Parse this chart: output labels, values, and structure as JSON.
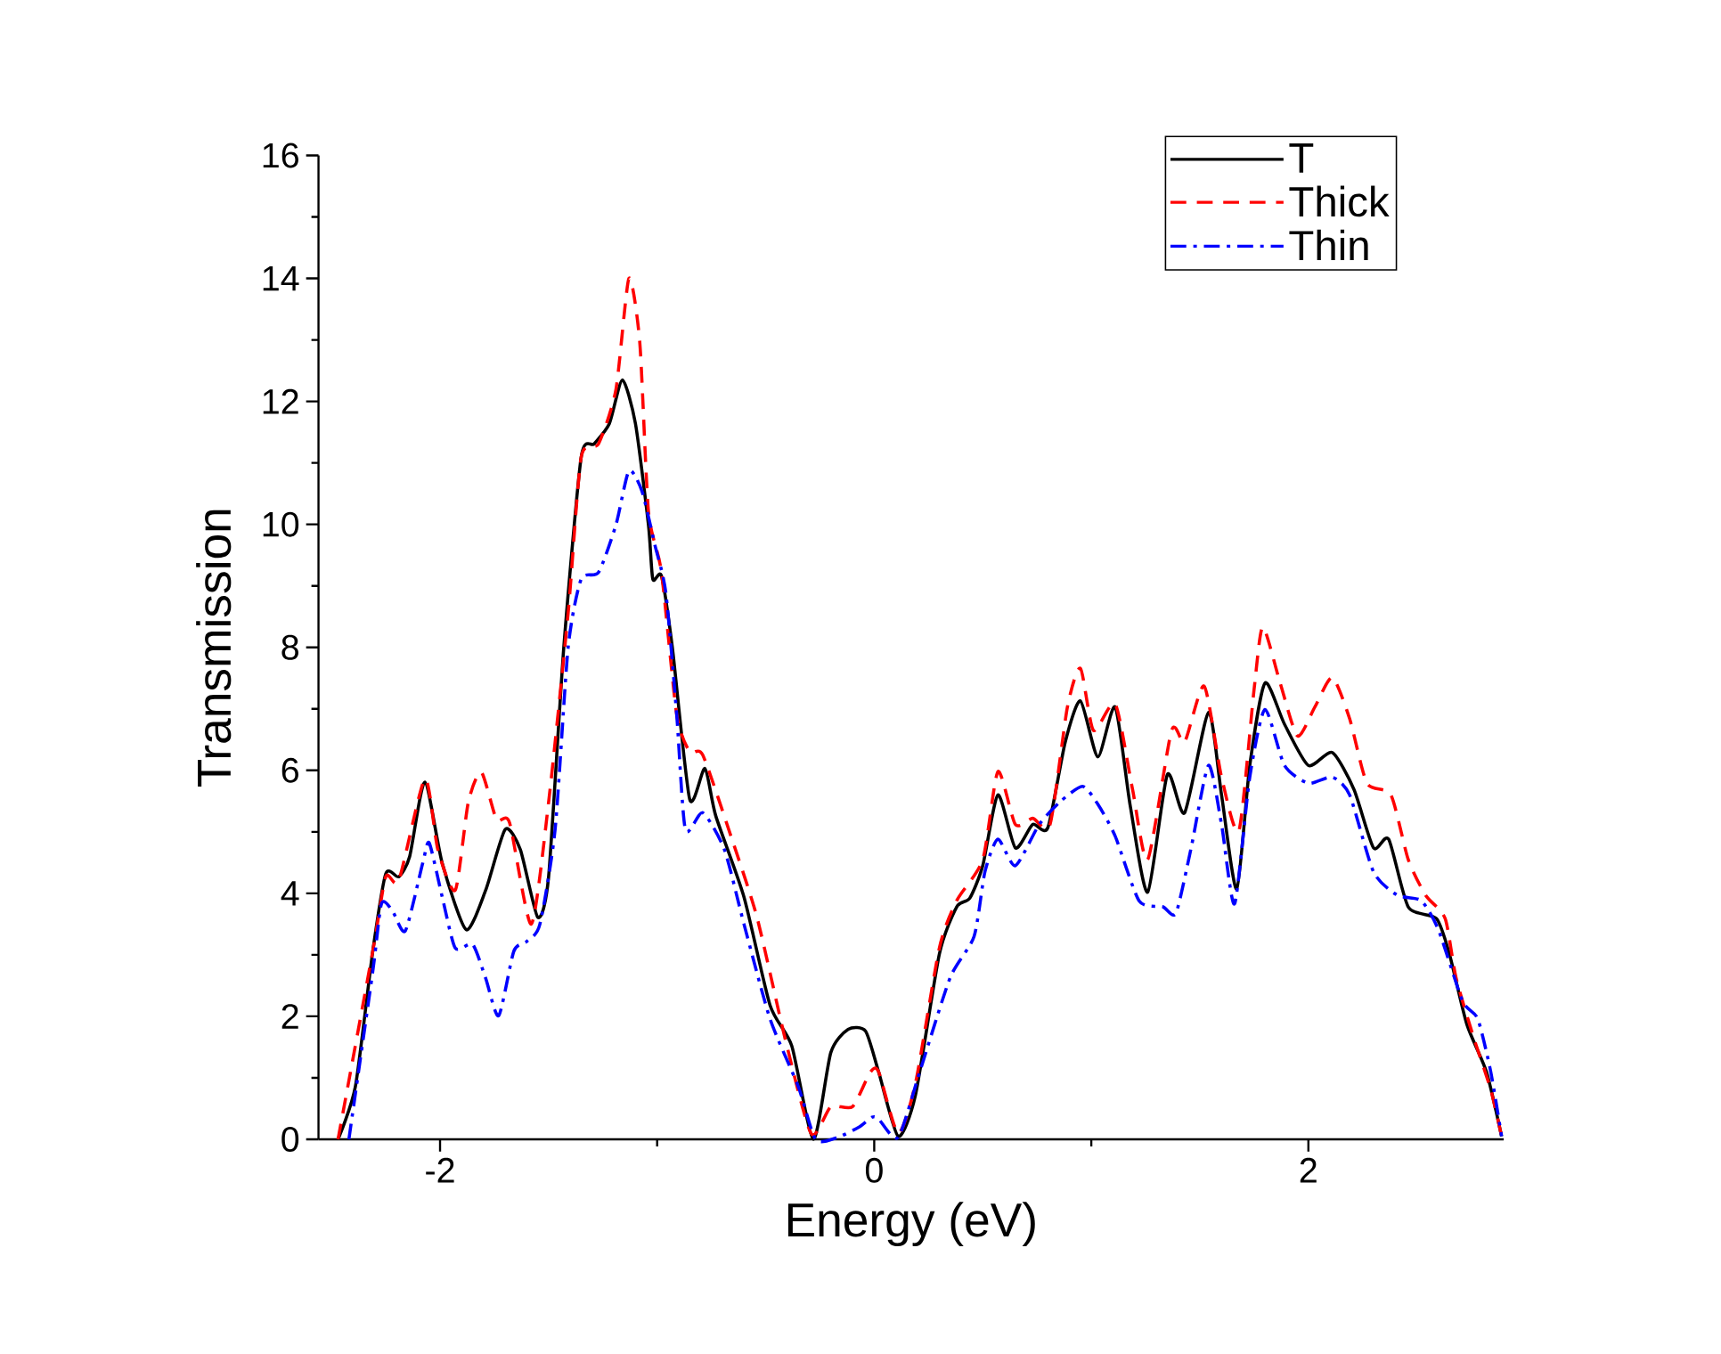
{
  "chart_data": {
    "type": "line",
    "xlabel": "Energy (eV)",
    "ylabel": "Transmission",
    "xlim": [
      -2.56,
      2.9
    ],
    "ylim": [
      0,
      16
    ],
    "xticks": [
      -2,
      0,
      2
    ],
    "yticks": [
      0,
      2,
      4,
      6,
      8,
      10,
      12,
      14,
      16
    ],
    "legend": "top right",
    "grid": false,
    "series": [
      {
        "name": "T",
        "color": "#000000",
        "line_style": "solid",
        "x": [
          -2.47,
          -2.39,
          -2.31,
          -2.25,
          -2.19,
          -2.14,
          -2.07,
          -1.99,
          -1.88,
          -1.79,
          -1.7,
          -1.63,
          -1.55,
          -1.5,
          -1.43,
          -1.35,
          -1.29,
          -1.22,
          -1.16,
          -1.1,
          -1.04,
          -1.02,
          -0.98,
          -0.93,
          -0.85,
          -0.78,
          -0.73,
          -0.6,
          -0.48,
          -0.38,
          -0.28,
          -0.2,
          -0.12,
          -0.04,
          0.02,
          0.11,
          0.19,
          0.3,
          0.38,
          0.44,
          0.5,
          0.57,
          0.65,
          0.73,
          0.8,
          0.88,
          0.95,
          1.03,
          1.11,
          1.18,
          1.26,
          1.35,
          1.43,
          1.54,
          1.6,
          1.67,
          1.73,
          1.8,
          1.89,
          2.0,
          2.11,
          2.21,
          2.3,
          2.37,
          2.46,
          2.59,
          2.65,
          2.73,
          2.82,
          2.89
        ],
        "values": [
          0,
          0.86,
          3.06,
          4.32,
          4.27,
          4.6,
          5.81,
          4.49,
          3.41,
          4.05,
          5.04,
          4.71,
          3.61,
          4.27,
          8.0,
          11.09,
          11.31,
          11.64,
          12.35,
          11.64,
          9.99,
          9.11,
          9.16,
          8.0,
          5.53,
          6.03,
          5.26,
          3.94,
          2.18,
          1.52,
          0,
          1.41,
          1.79,
          1.76,
          1.1,
          0.05,
          0.72,
          3.01,
          3.78,
          3.92,
          4.45,
          5.6,
          4.74,
          5.12,
          5.07,
          6.46,
          7.13,
          6.22,
          7.03,
          5.41,
          4.02,
          5.93,
          5.31,
          6.94,
          5.6,
          4.07,
          6.08,
          7.42,
          6.75,
          6.08,
          6.29,
          5.69,
          4.74,
          4.88,
          3.78,
          3.59,
          3.01,
          1.87,
          1.1,
          0.05
        ]
      },
      {
        "name": "Thick",
        "color": "#ff0000",
        "line_style": "dashed",
        "x": [
          -2.47,
          -2.31,
          -2.25,
          -2.19,
          -2.07,
          -2.01,
          -1.93,
          -1.87,
          -1.81,
          -1.74,
          -1.68,
          -1.58,
          -1.5,
          -1.41,
          -1.35,
          -1.27,
          -1.19,
          -1.13,
          -1.08,
          -1.04,
          -0.98,
          -0.91,
          -0.85,
          -0.79,
          -0.66,
          -0.54,
          -0.41,
          -0.29,
          -0.2,
          -0.1,
          -0.02,
          0.02,
          0.11,
          0.19,
          0.3,
          0.38,
          0.5,
          0.57,
          0.65,
          0.73,
          0.81,
          0.89,
          0.95,
          1.01,
          1.11,
          1.19,
          1.26,
          1.37,
          1.43,
          1.52,
          1.6,
          1.68,
          1.75,
          1.79,
          1.87,
          1.95,
          2.03,
          2.11,
          2.19,
          2.27,
          2.38,
          2.46,
          2.54,
          2.63,
          2.68,
          2.76,
          2.84,
          2.89
        ],
        "values": [
          0,
          3.06,
          4.27,
          4.21,
          5.86,
          4.71,
          4.05,
          5.48,
          5.97,
          5.2,
          5.15,
          3.5,
          5.48,
          8.56,
          11.09,
          11.31,
          12.19,
          14.0,
          12.96,
          10.21,
          9.22,
          6.91,
          6.3,
          6.25,
          4.93,
          3.61,
          1.63,
          0.09,
          0.53,
          0.53,
          1.08,
          1.1,
          0.1,
          0.91,
          3.11,
          3.88,
          4.55,
          5.98,
          5.12,
          5.22,
          5.12,
          7.03,
          7.66,
          6.65,
          7.08,
          5.69,
          4.55,
          6.65,
          6.46,
          7.37,
          5.89,
          5.02,
          7.32,
          8.33,
          7.42,
          6.56,
          7.03,
          7.51,
          6.84,
          5.79,
          5.6,
          4.55,
          3.97,
          3.59,
          2.63,
          1.67,
          0.81,
          0.05
        ]
      },
      {
        "name": "Thin",
        "color": "#0000ff",
        "line_style": "dashdot",
        "x": [
          -2.42,
          -2.31,
          -2.27,
          -2.22,
          -2.16,
          -2.08,
          -2.05,
          -1.99,
          -1.93,
          -1.85,
          -1.79,
          -1.73,
          -1.66,
          -1.6,
          -1.54,
          -1.47,
          -1.41,
          -1.35,
          -1.27,
          -1.19,
          -1.13,
          -1.07,
          -1.01,
          -0.96,
          -0.91,
          -0.87,
          -0.79,
          -0.69,
          -0.6,
          -0.48,
          -0.35,
          -0.27,
          -0.17,
          -0.07,
          -0.01,
          0.02,
          0.11,
          0.21,
          0.35,
          0.46,
          0.51,
          0.57,
          0.65,
          0.76,
          0.86,
          0.96,
          1.03,
          1.11,
          1.22,
          1.33,
          1.39,
          1.46,
          1.54,
          1.6,
          1.66,
          1.73,
          1.8,
          1.89,
          2.0,
          2.11,
          2.19,
          2.3,
          2.41,
          2.52,
          2.6,
          2.71,
          2.78,
          2.84,
          2.89
        ],
        "values": [
          0,
          2.73,
          3.83,
          3.72,
          3.39,
          4.49,
          4.82,
          3.94,
          3.11,
          3.17,
          2.62,
          2.01,
          3.06,
          3.22,
          3.5,
          5.04,
          8.0,
          9.11,
          9.22,
          9.99,
          10.87,
          10.54,
          9.66,
          8.89,
          6.91,
          5.04,
          5.31,
          4.71,
          3.5,
          1.96,
          0.86,
          0,
          0.03,
          0.2,
          0.36,
          0.33,
          0.03,
          1.1,
          2.63,
          3.3,
          4.35,
          4.88,
          4.45,
          5.12,
          5.5,
          5.74,
          5.45,
          4.93,
          3.88,
          3.78,
          3.68,
          4.74,
          6.08,
          5.12,
          3.83,
          5.89,
          6.99,
          6.08,
          5.79,
          5.89,
          5.6,
          4.35,
          3.97,
          3.88,
          3.4,
          2.25,
          1.96,
          1.1,
          0.05
        ]
      }
    ]
  }
}
